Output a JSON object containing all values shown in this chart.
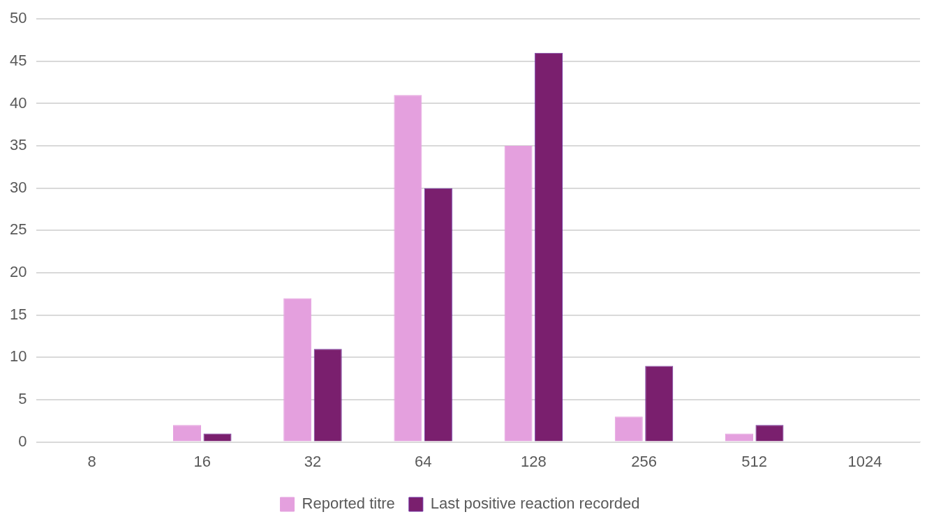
{
  "chart_data": {
    "type": "bar",
    "categories": [
      "8",
      "16",
      "32",
      "64",
      "128",
      "256",
      "512",
      "1024"
    ],
    "series": [
      {
        "name": "Reported titre",
        "color": "#e4a0de",
        "values": [
          0,
          2,
          17,
          41,
          35,
          3,
          1,
          0
        ]
      },
      {
        "name": "Last positive reaction recorded",
        "color": "#7a1f6e",
        "values": [
          0,
          1,
          11,
          30,
          46,
          9,
          2,
          0
        ]
      }
    ],
    "ylim": [
      0,
      50
    ],
    "yticks": [
      0,
      5,
      10,
      15,
      20,
      25,
      30,
      35,
      40,
      45,
      50
    ],
    "grid": "y",
    "legend": "bottom"
  }
}
